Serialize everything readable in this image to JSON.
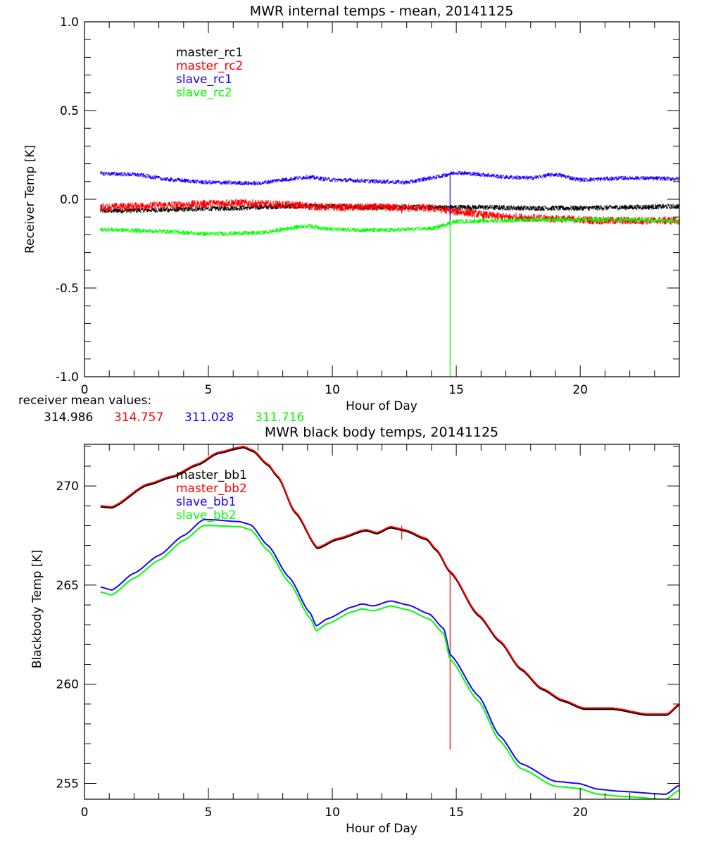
{
  "colors": {
    "black": "#000000",
    "red": "#ff0000",
    "blue": "#1a00ff",
    "green": "#00ff00"
  },
  "mean_values": {
    "label": "receiver mean values:",
    "values": [
      {
        "text": "314.986",
        "color": "#000000"
      },
      {
        "text": "314.757",
        "color": "#ff0000"
      },
      {
        "text": "311.028",
        "color": "#1a00ff"
      },
      {
        "text": "311.716",
        "color": "#00ff00"
      }
    ]
  },
  "chart_data": [
    {
      "type": "line",
      "title": "MWR internal temps - mean, 20141125",
      "xlabel": "Hour of Day",
      "ylabel": "Receiver Temp [K]",
      "xlim": [
        0,
        24
      ],
      "ylim": [
        -1.0,
        1.0
      ],
      "xticks": [
        0,
        5,
        10,
        15,
        20
      ],
      "xtick_labels": [
        "0",
        "5",
        "10",
        "15",
        "20"
      ],
      "xminor_step": 1,
      "yticks": [
        -1.0,
        -0.5,
        0.0,
        0.5,
        1.0
      ],
      "ytick_labels": [
        "-1.0",
        "-0.5",
        "0.0",
        "0.5",
        "1.0"
      ],
      "yminor_step": 0.1,
      "grid": false,
      "legend_position": "top-left",
      "noisy": true,
      "series": [
        {
          "name": "master_rc1",
          "color": "#000000",
          "noise": 0.012,
          "x": [
            0.65,
            3,
            6,
            8,
            10,
            12,
            14,
            16,
            18,
            20,
            22,
            24
          ],
          "y": [
            -0.065,
            -0.06,
            -0.05,
            -0.04,
            -0.04,
            -0.045,
            -0.045,
            -0.045,
            -0.05,
            -0.05,
            -0.045,
            -0.04
          ]
        },
        {
          "name": "master_rc2",
          "color": "#ff0000",
          "noise": 0.018,
          "x": [
            0.65,
            3,
            6,
            8,
            10,
            12,
            14,
            15,
            17,
            19,
            21,
            24
          ],
          "y": [
            -0.045,
            -0.035,
            -0.02,
            -0.03,
            -0.045,
            -0.045,
            -0.05,
            -0.07,
            -0.1,
            -0.11,
            -0.12,
            -0.12
          ],
          "spikes": [
            {
              "x": 12.8,
              "y_from": -0.05,
              "y_to": -0.08
            }
          ]
        },
        {
          "name": "slave_rc1",
          "color": "#1a00ff",
          "noise": 0.01,
          "x": [
            0.65,
            2,
            3.5,
            5,
            7,
            8,
            9,
            10,
            12,
            13,
            14,
            15,
            16,
            17,
            18,
            19,
            20,
            22,
            24
          ],
          "y": [
            0.145,
            0.14,
            0.11,
            0.095,
            0.09,
            0.11,
            0.125,
            0.11,
            0.1,
            0.095,
            0.12,
            0.15,
            0.14,
            0.125,
            0.12,
            0.14,
            0.11,
            0.12,
            0.115
          ],
          "spikes": [
            {
              "x": 14.75,
              "y_from": 0.15,
              "y_to": -0.15
            }
          ]
        },
        {
          "name": "slave_rc2",
          "color": "#00ff00",
          "noise": 0.01,
          "x": [
            0.65,
            3,
            5,
            7,
            9,
            10,
            12,
            14,
            15,
            17,
            19,
            21,
            24
          ],
          "y": [
            -0.17,
            -0.18,
            -0.195,
            -0.19,
            -0.15,
            -0.17,
            -0.175,
            -0.165,
            -0.125,
            -0.12,
            -0.115,
            -0.115,
            -0.12
          ],
          "spikes": [
            {
              "x": 14.75,
              "y_from": -0.12,
              "y_to": -1.0
            }
          ]
        }
      ]
    },
    {
      "type": "line",
      "title": "MWR black body temps, 20141125",
      "xlabel": "Hour of Day",
      "ylabel": "Blackbody Temp [K]",
      "xlim": [
        0,
        24
      ],
      "ylim": [
        254.2,
        272.1
      ],
      "xticks": [
        0,
        5,
        10,
        15,
        20
      ],
      "xtick_labels": [
        "0",
        "5",
        "10",
        "15",
        "20"
      ],
      "xminor_step": 1,
      "yticks": [
        255,
        260,
        265,
        270
      ],
      "ytick_labels": [
        "255",
        "260",
        "265",
        "270"
      ],
      "yminor_step": 1,
      "grid": false,
      "legend_position": "top-left",
      "noisy": false,
      "series": [
        {
          "name": "master_bb1",
          "color": "#000000",
          "offset": -0.06,
          "x": [
            0.65,
            1.1,
            2.55,
            3.55,
            4.55,
            5.4,
            6.25,
            6.4,
            6.8,
            7.4,
            7.8,
            8.5,
            9.4,
            10.2,
            11.35,
            11.8,
            12.35,
            12.9,
            13.8,
            14.2,
            14.75,
            15.9,
            16.75,
            17.6,
            18.45,
            19.3,
            20.15,
            21.3,
            22.7,
            23.5,
            24.0
          ],
          "y": [
            269.0,
            268.95,
            270.1,
            270.5,
            271.1,
            271.7,
            271.95,
            272.0,
            271.8,
            271.1,
            270.5,
            268.7,
            266.9,
            267.35,
            267.8,
            267.65,
            267.95,
            267.8,
            267.35,
            266.8,
            265.7,
            263.5,
            262.2,
            260.8,
            259.8,
            259.2,
            258.8,
            258.8,
            258.5,
            258.5,
            259.0
          ]
        },
        {
          "name": "master_bb2",
          "color": "#ff0000",
          "offset": 0.0,
          "x": [
            0.65,
            1.1,
            2.55,
            3.55,
            4.55,
            5.4,
            6.25,
            6.4,
            6.8,
            7.4,
            7.8,
            8.5,
            9.4,
            10.2,
            11.35,
            11.8,
            12.35,
            12.9,
            13.8,
            14.2,
            14.75,
            15.9,
            16.75,
            17.6,
            18.45,
            19.3,
            20.15,
            21.3,
            22.7,
            23.5,
            24.0
          ],
          "y": [
            269.0,
            268.95,
            270.1,
            270.5,
            271.1,
            271.7,
            271.95,
            272.0,
            271.8,
            271.1,
            270.5,
            268.7,
            266.9,
            267.35,
            267.8,
            267.65,
            267.95,
            267.8,
            267.35,
            266.8,
            265.7,
            263.5,
            262.2,
            260.8,
            259.8,
            259.2,
            258.8,
            258.8,
            258.5,
            258.5,
            259.0
          ],
          "spikes": [
            {
              "x": 12.8,
              "y_from": 268.0,
              "y_to": 267.3
            },
            {
              "x": 14.75,
              "y_from": 265.7,
              "y_to": 256.7
            }
          ]
        },
        {
          "name": "slave_bb1",
          "color": "#1a00ff",
          "offset": 0.0,
          "x": [
            0.65,
            1.1,
            2.0,
            3.0,
            4.0,
            4.8,
            5.1,
            6.25,
            6.7,
            7.4,
            8.25,
            9.1,
            9.35,
            9.8,
            10.8,
            11.2,
            11.65,
            12.35,
            13.05,
            13.9,
            14.5,
            14.75,
            15.9,
            16.75,
            17.6,
            19.0,
            19.9,
            20.75,
            21.6,
            23.45,
            24.0
          ],
          "y": [
            264.9,
            264.75,
            265.6,
            266.5,
            267.5,
            268.3,
            268.3,
            268.2,
            268.05,
            267.0,
            265.4,
            263.6,
            262.95,
            263.3,
            263.9,
            264.05,
            263.95,
            264.2,
            264.0,
            263.55,
            262.8,
            261.5,
            259.4,
            257.4,
            256.0,
            255.1,
            255.0,
            254.7,
            254.6,
            254.45,
            254.9
          ]
        },
        {
          "name": "slave_bb2",
          "color": "#00ff00",
          "offset": 0.0,
          "x": [
            0.65,
            1.1,
            2.0,
            3.0,
            4.0,
            4.8,
            5.1,
            6.25,
            6.7,
            7.4,
            8.25,
            9.1,
            9.35,
            9.8,
            10.8,
            11.2,
            11.65,
            12.35,
            13.05,
            13.9,
            14.5,
            14.75,
            15.9,
            16.75,
            17.6,
            19.0,
            19.9,
            20.75,
            21.6,
            23.45,
            24.0
          ],
          "y": [
            264.65,
            264.5,
            265.35,
            266.25,
            267.25,
            268.0,
            268.0,
            267.95,
            267.8,
            266.75,
            265.15,
            263.35,
            262.7,
            263.05,
            263.65,
            263.8,
            263.7,
            263.95,
            263.75,
            263.3,
            262.55,
            261.25,
            259.15,
            257.15,
            255.75,
            254.85,
            254.75,
            254.45,
            254.35,
            254.2,
            254.65
          ]
        }
      ]
    }
  ]
}
